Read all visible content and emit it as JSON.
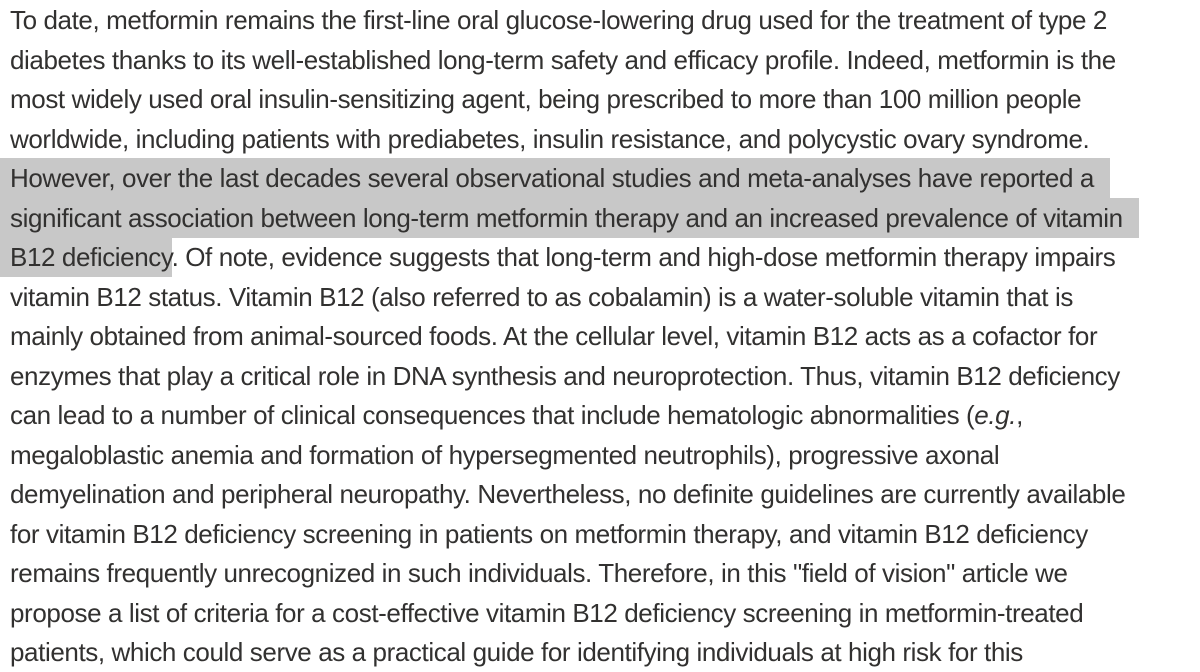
{
  "document": {
    "background_color": "#ffffff",
    "text_color": "#323130",
    "selection_color": "#c8c8c8",
    "selected_text": "However, over the last decades several observational studies and meta-analyses have reported a significant association between long-term metformin therapy and an increased prevalence of vitamin B12 deficiency",
    "lines": [
      [
        {
          "text": "To date, metformin remains the first-line oral glucose-lowering drug used for the treatment of type 2",
          "hl": false,
          "italic": false
        }
      ],
      [
        {
          "text": "diabetes thanks to its well-established long-term safety and efficacy profile. Indeed, metformin is the",
          "hl": false,
          "italic": false
        }
      ],
      [
        {
          "text": "most widely used oral insulin-sensitizing agent, being prescribed to more than 100 million people",
          "hl": false,
          "italic": false
        }
      ],
      [
        {
          "text": "worldwide, including patients with prediabetes, insulin resistance, and polycystic ovary syndrome.",
          "hl": false,
          "italic": false
        }
      ],
      [
        {
          "text": "However, over the last decades several observational studies and meta-analyses have reported a",
          "hl": true,
          "italic": false
        }
      ],
      [
        {
          "text": "significant association between long-term metformin therapy and an increased prevalence of vitamin",
          "hl": true,
          "italic": false
        }
      ],
      [
        {
          "text": "B12 deficiency",
          "hl": true,
          "italic": false
        },
        {
          "text": ". Of note, evidence suggests that long-term and high-dose metformin therapy impairs",
          "hl": false,
          "italic": false
        }
      ],
      [
        {
          "text": "vitamin B12 status. Vitamin B12 (also referred to as cobalamin) is a water-soluble vitamin that is",
          "hl": false,
          "italic": false
        }
      ],
      [
        {
          "text": "mainly obtained from animal-sourced foods. At the cellular level, vitamin B12 acts as a cofactor for",
          "hl": false,
          "italic": false
        }
      ],
      [
        {
          "text": "enzymes that play a critical role in DNA synthesis and neuroprotection. Thus, vitamin B12 deficiency",
          "hl": false,
          "italic": false
        }
      ],
      [
        {
          "text": "can lead to a number of clinical consequences that include hematologic abnormalities (",
          "hl": false,
          "italic": false
        },
        {
          "text": "e.g.",
          "hl": false,
          "italic": true
        },
        {
          "text": ",",
          "hl": false,
          "italic": false
        }
      ],
      [
        {
          "text": "megaloblastic anemia and formation of hypersegmented neutrophils), progressive axonal",
          "hl": false,
          "italic": false
        }
      ],
      [
        {
          "text": "demyelination and peripheral neuropathy. Nevertheless, no definite guidelines are currently available",
          "hl": false,
          "italic": false
        }
      ],
      [
        {
          "text": "for vitamin B12 deficiency screening in patients on metformin therapy, and vitamin B12 deficiency",
          "hl": false,
          "italic": false
        }
      ],
      [
        {
          "text": "remains frequently unrecognized in such individuals. Therefore, in this \"field of vision\" article we",
          "hl": false,
          "italic": false
        }
      ],
      [
        {
          "text": "propose a list of criteria for a cost-effective vitamin B12 deficiency screening in metformin-treated",
          "hl": false,
          "italic": false
        }
      ],
      [
        {
          "text": "patients, which could serve as a practical guide for identifying individuals at high risk for this",
          "hl": false,
          "italic": false
        }
      ]
    ]
  }
}
